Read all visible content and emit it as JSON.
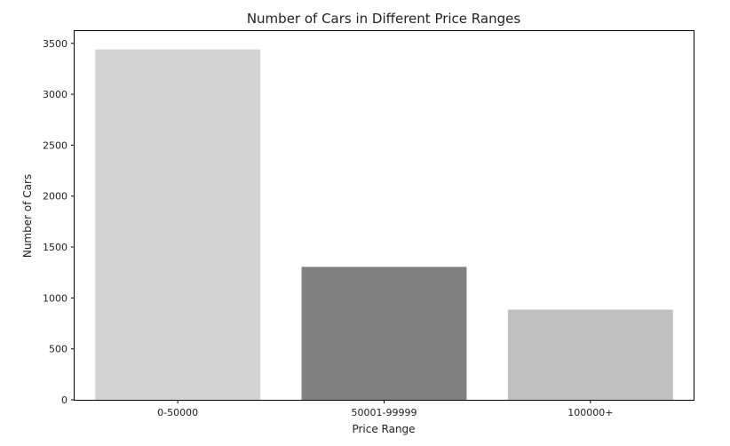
{
  "chart_data": {
    "type": "bar",
    "title": "Number of Cars in Different Price Ranges",
    "xlabel": "Price Range",
    "ylabel": "Number of Cars",
    "categories": [
      "0-50000",
      "50001-99999",
      "100000+"
    ],
    "values": [
      3440,
      1305,
      885
    ],
    "colors": [
      "#d3d3d3",
      "#808080",
      "#c0c0c0"
    ],
    "ylim": [
      0,
      3620
    ],
    "yticks": [
      0,
      500,
      1000,
      1500,
      2000,
      2500,
      3000,
      3500
    ],
    "grid": false,
    "legend": "none"
  }
}
